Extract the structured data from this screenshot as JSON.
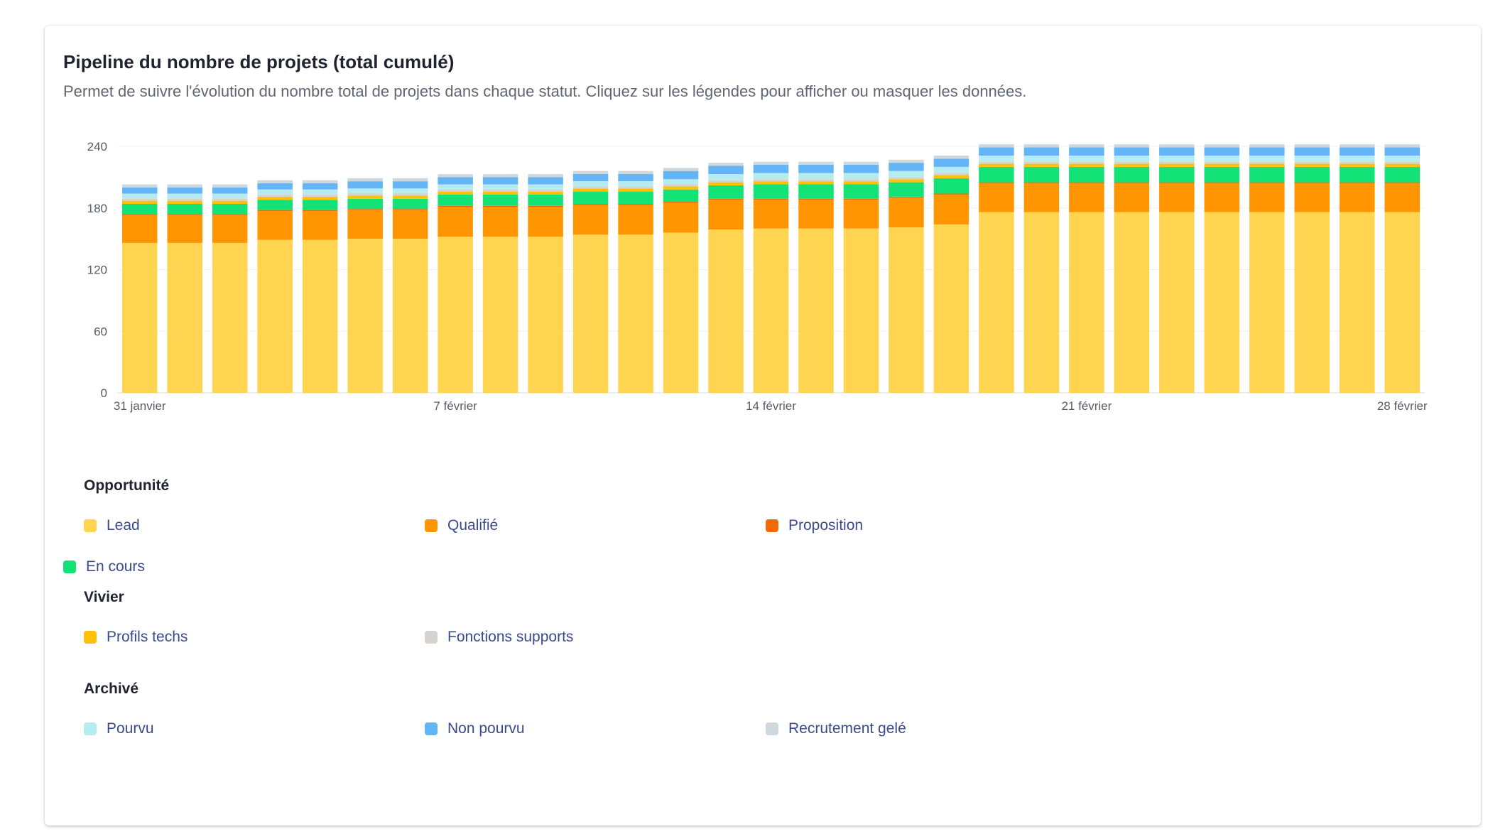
{
  "card": {
    "title": "Pipeline du nombre de projets (total cumulé)",
    "subtitle": "Permet de suivre l'évolution du nombre total de projets dans chaque statut. Cliquez sur les légendes pour afficher ou masquer les données."
  },
  "legend": {
    "groups": [
      {
        "title": "Opportunité",
        "items": [
          {
            "label": "Lead",
            "color": "#FFD451"
          },
          {
            "label": "Qualifié",
            "color": "#FF9500"
          },
          {
            "label": "Proposition",
            "color": "#F06A0A"
          },
          {
            "label": "En cours",
            "color": "#13E376"
          }
        ]
      },
      {
        "title": "Vivier",
        "items": [
          {
            "label": "Profils techs",
            "color": "#FFC107"
          },
          {
            "label": "Fonctions supports",
            "color": "#D8D2CE"
          }
        ]
      },
      {
        "title": "Archivé",
        "items": [
          {
            "label": "Pourvu",
            "color": "#B5ECEF"
          },
          {
            "label": "Non pourvu",
            "color": "#64B5F6"
          },
          {
            "label": "Recrutement gelé",
            "color": "#CFD8DC"
          }
        ]
      }
    ]
  },
  "chart_data": {
    "type": "bar",
    "stacked": true,
    "title": "Pipeline du nombre de projets (total cumulé)",
    "xlabel": "",
    "ylabel": "",
    "ylim": [
      0,
      240
    ],
    "yticks": [
      0,
      60,
      120,
      180,
      240
    ],
    "x_tick_labels": [
      {
        "index": 0,
        "label": "31 janvier"
      },
      {
        "index": 7,
        "label": "7 février"
      },
      {
        "index": 14,
        "label": "14 février"
      },
      {
        "index": 21,
        "label": "21 février"
      },
      {
        "index": 28,
        "label": "28 février"
      }
    ],
    "categories": [
      "31 janvier",
      "1 février",
      "2 février",
      "3 février",
      "4 février",
      "5 février",
      "6 février",
      "7 février",
      "8 février",
      "9 février",
      "10 février",
      "11 février",
      "12 février",
      "13 février",
      "14 février",
      "15 février",
      "16 février",
      "17 février",
      "18 février",
      "19 février",
      "20 février",
      "21 février",
      "22 février",
      "23 février",
      "24 février",
      "25 février",
      "26 février",
      "27 février",
      "28 février"
    ],
    "series": [
      {
        "name": "Lead",
        "color": "#FFD451",
        "values": [
          146,
          146,
          146,
          149,
          149,
          150,
          150,
          152,
          152,
          152,
          154,
          154,
          156,
          159,
          160,
          160,
          160,
          161,
          164,
          176,
          176,
          176,
          176,
          176,
          176,
          176,
          176,
          176,
          176
        ]
      },
      {
        "name": "Qualifié",
        "color": "#FF9500",
        "values": [
          27,
          27,
          27,
          28,
          28,
          28,
          28,
          29,
          29,
          29,
          29,
          29,
          29,
          29,
          28,
          28,
          28,
          29,
          29,
          28,
          28,
          28,
          28,
          28,
          28,
          28,
          28,
          28,
          28
        ]
      },
      {
        "name": "Proposition",
        "color": "#F06A0A",
        "values": [
          1,
          1,
          1,
          1,
          1,
          1,
          1,
          1,
          1,
          1,
          1,
          1,
          1,
          1,
          1,
          1,
          1,
          1,
          1,
          1,
          1,
          1,
          1,
          1,
          1,
          1,
          1,
          1,
          1
        ]
      },
      {
        "name": "En cours",
        "color": "#13E376",
        "values": [
          10,
          10,
          10,
          10,
          10,
          10,
          10,
          11,
          11,
          11,
          12,
          12,
          12,
          13,
          14,
          14,
          14,
          14,
          15,
          15,
          15,
          15,
          15,
          15,
          15,
          15,
          15,
          15,
          15
        ]
      },
      {
        "name": "Profils techs",
        "color": "#FFC107",
        "values": [
          3,
          3,
          3,
          3,
          3,
          3,
          3,
          3,
          3,
          3,
          3,
          3,
          3,
          3,
          3,
          3,
          3,
          3,
          3,
          3,
          3,
          3,
          3,
          3,
          3,
          3,
          3,
          3,
          3
        ]
      },
      {
        "name": "Fonctions supports",
        "color": "#D8D2CE",
        "values": [
          2,
          2,
          2,
          2,
          2,
          2,
          2,
          2,
          2,
          2,
          2,
          2,
          2,
          2,
          2,
          2,
          2,
          2,
          2,
          2,
          2,
          2,
          2,
          2,
          2,
          2,
          2,
          2,
          2
        ]
      },
      {
        "name": "Pourvu",
        "color": "#B5ECEF",
        "values": [
          5,
          5,
          5,
          5,
          5,
          5,
          5,
          5,
          5,
          5,
          5,
          5,
          5,
          6,
          6,
          6,
          6,
          6,
          6,
          6,
          6,
          6,
          6,
          6,
          6,
          6,
          6,
          6,
          6
        ]
      },
      {
        "name": "Non pourvu",
        "color": "#64B5F6",
        "values": [
          6,
          6,
          6,
          6,
          6,
          7,
          7,
          7,
          7,
          7,
          7,
          7,
          8,
          8,
          8,
          8,
          8,
          8,
          8,
          8,
          8,
          8,
          8,
          8,
          8,
          8,
          8,
          8,
          8
        ]
      },
      {
        "name": "Recrutement gelé",
        "color": "#CFD8DC",
        "values": [
          3,
          3,
          3,
          3,
          3,
          3,
          3,
          3,
          3,
          3,
          3,
          3,
          3,
          3,
          3,
          3,
          3,
          3,
          3,
          3,
          3,
          3,
          3,
          3,
          3,
          3,
          3,
          3,
          3
        ]
      }
    ]
  }
}
